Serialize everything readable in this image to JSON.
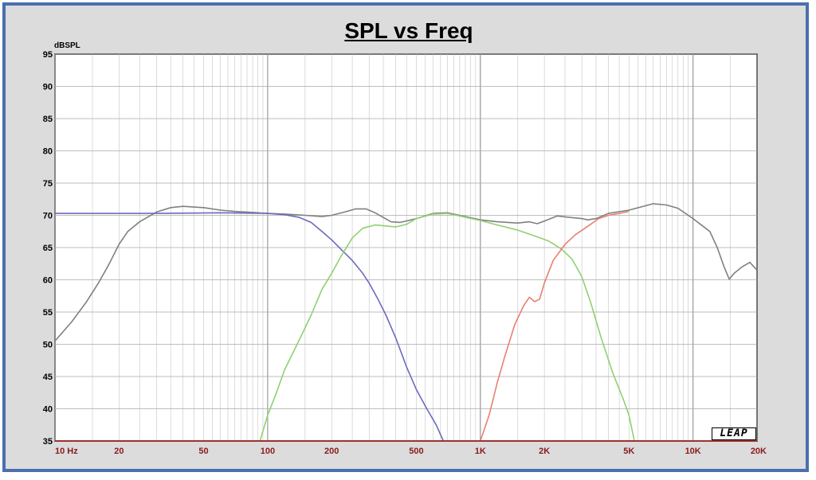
{
  "chart_data": {
    "type": "line",
    "title": "SPL vs Freq",
    "ylabel": "dBSPL",
    "x_scale": "log",
    "xlim": [
      10,
      20000
    ],
    "ylim": [
      35,
      95
    ],
    "grid": true,
    "x_ticks": [
      {
        "value": 10,
        "label": "10 Hz"
      },
      {
        "value": 20,
        "label": "20"
      },
      {
        "value": 50,
        "label": "50"
      },
      {
        "value": 100,
        "label": "100"
      },
      {
        "value": 200,
        "label": "200"
      },
      {
        "value": 500,
        "label": "500"
      },
      {
        "value": 1000,
        "label": "1K"
      },
      {
        "value": 2000,
        "label": "2K"
      },
      {
        "value": 5000,
        "label": "5K"
      },
      {
        "value": 10000,
        "label": "10K"
      },
      {
        "value": 20000,
        "label": "20K"
      }
    ],
    "y_ticks": [
      95,
      90,
      85,
      80,
      75,
      70,
      65,
      60,
      55,
      50,
      45,
      40,
      35
    ],
    "watermark": "LEAP",
    "series": [
      {
        "color": "#808080",
        "points": [
          [
            10,
            50.5
          ],
          [
            12,
            53.5
          ],
          [
            14,
            56.5
          ],
          [
            16,
            59.5
          ],
          [
            18,
            62.5
          ],
          [
            20,
            65.5
          ],
          [
            22,
            67.5
          ],
          [
            25,
            69
          ],
          [
            30,
            70.5
          ],
          [
            35,
            71.2
          ],
          [
            40,
            71.4
          ],
          [
            50,
            71.2
          ],
          [
            60,
            70.8
          ],
          [
            70,
            70.6
          ],
          [
            80,
            70.5
          ],
          [
            100,
            70.3
          ],
          [
            120,
            70.2
          ],
          [
            150,
            70
          ],
          [
            180,
            69.8
          ],
          [
            200,
            70
          ],
          [
            230,
            70.5
          ],
          [
            260,
            71
          ],
          [
            290,
            71
          ],
          [
            320,
            70.4
          ],
          [
            380,
            69
          ],
          [
            420,
            68.9
          ],
          [
            500,
            69.5
          ],
          [
            600,
            70.3
          ],
          [
            700,
            70.4
          ],
          [
            800,
            70
          ],
          [
            1000,
            69.3
          ],
          [
            1200,
            69
          ],
          [
            1500,
            68.8
          ],
          [
            1700,
            69
          ],
          [
            1850,
            68.7
          ],
          [
            2000,
            69.1
          ],
          [
            2300,
            69.9
          ],
          [
            2600,
            69.7
          ],
          [
            3000,
            69.5
          ],
          [
            3200,
            69.3
          ],
          [
            3500,
            69.5
          ],
          [
            4000,
            70.3
          ],
          [
            5000,
            70.8
          ],
          [
            6000,
            71.5
          ],
          [
            6500,
            71.8
          ],
          [
            7500,
            71.6
          ],
          [
            8500,
            71.1
          ],
          [
            10000,
            69.5
          ],
          [
            12000,
            67.5
          ],
          [
            13000,
            65
          ],
          [
            14000,
            62
          ],
          [
            14800,
            60.1
          ],
          [
            15600,
            61
          ],
          [
            17000,
            62
          ],
          [
            18500,
            62.7
          ],
          [
            20000,
            61.5
          ]
        ]
      },
      {
        "color": "#6b6bbd",
        "points": [
          [
            10,
            70.3
          ],
          [
            30,
            70.3
          ],
          [
            60,
            70.4
          ],
          [
            100,
            70.3
          ],
          [
            120,
            70.1
          ],
          [
            140,
            69.7
          ],
          [
            160,
            68.9
          ],
          [
            180,
            67.5
          ],
          [
            200,
            66.2
          ],
          [
            220,
            64.8
          ],
          [
            250,
            63
          ],
          [
            280,
            61
          ],
          [
            300,
            59.5
          ],
          [
            330,
            57
          ],
          [
            360,
            54.5
          ],
          [
            400,
            51
          ],
          [
            450,
            46.5
          ],
          [
            500,
            43
          ],
          [
            560,
            40
          ],
          [
            620,
            37.5
          ],
          [
            670,
            35
          ]
        ]
      },
      {
        "color": "#90d070",
        "points": [
          [
            92,
            35
          ],
          [
            100,
            39
          ],
          [
            110,
            42.5
          ],
          [
            120,
            46
          ],
          [
            140,
            50.5
          ],
          [
            160,
            54.5
          ],
          [
            180,
            58.5
          ],
          [
            200,
            61
          ],
          [
            220,
            63.5
          ],
          [
            250,
            66.5
          ],
          [
            280,
            68
          ],
          [
            320,
            68.5
          ],
          [
            400,
            68.2
          ],
          [
            450,
            68.6
          ],
          [
            500,
            69.5
          ],
          [
            600,
            70.2
          ],
          [
            700,
            70.3
          ],
          [
            800,
            69.9
          ],
          [
            1000,
            69.2
          ],
          [
            1200,
            68.5
          ],
          [
            1500,
            67.7
          ],
          [
            1800,
            66.8
          ],
          [
            2100,
            66
          ],
          [
            2400,
            64.8
          ],
          [
            2700,
            63.2
          ],
          [
            3000,
            60.5
          ],
          [
            3300,
            56.5
          ],
          [
            3700,
            51
          ],
          [
            4200,
            45.5
          ],
          [
            4700,
            41.5
          ],
          [
            5000,
            39
          ],
          [
            5300,
            35
          ]
        ]
      },
      {
        "color": "#e88070",
        "points": [
          [
            1000,
            35
          ],
          [
            1100,
            39
          ],
          [
            1200,
            44
          ],
          [
            1300,
            48
          ],
          [
            1450,
            53
          ],
          [
            1600,
            56
          ],
          [
            1700,
            57.3
          ],
          [
            1800,
            56.6
          ],
          [
            1900,
            57
          ],
          [
            2000,
            59.5
          ],
          [
            2200,
            63
          ],
          [
            2500,
            65.5
          ],
          [
            2800,
            67
          ],
          [
            3200,
            68.3
          ],
          [
            3600,
            69.5
          ],
          [
            4000,
            70
          ],
          [
            4500,
            70.3
          ],
          [
            5000,
            70.6
          ]
        ]
      }
    ]
  }
}
